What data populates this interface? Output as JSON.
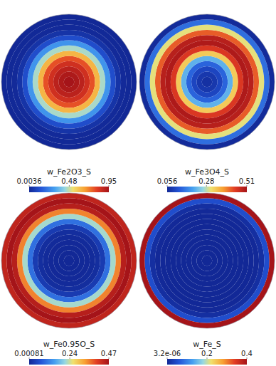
{
  "chart_data": [
    {
      "type": "heatmap",
      "title": "w_Fe2O3_S",
      "cells": [
        0.95,
        0.93,
        0.9,
        0.85,
        0.78,
        0.62,
        0.45,
        0.28,
        0.12,
        0.04,
        0.01,
        0.006,
        0.0036
      ],
      "color_range": [
        0.0036,
        0.95
      ],
      "color_ticks": [
        0.0036,
        0.48,
        0.95
      ]
    },
    {
      "type": "heatmap",
      "title": "w_Fe3O4_S",
      "cells": [
        0.07,
        0.08,
        0.1,
        0.14,
        0.22,
        0.33,
        0.45,
        0.5,
        0.49,
        0.42,
        0.3,
        0.15,
        0.06
      ],
      "color_range": [
        0.056,
        0.51
      ],
      "color_ticks": [
        0.056,
        0.28,
        0.51
      ]
    },
    {
      "type": "heatmap",
      "title": "w_Fe0.95O_S",
      "cells": [
        0.001,
        0.001,
        0.002,
        0.003,
        0.005,
        0.01,
        0.03,
        0.1,
        0.22,
        0.35,
        0.45,
        0.47,
        0.44
      ],
      "color_range": [
        0.00081,
        0.47
      ],
      "color_ticks": [
        0.00081,
        0.24,
        0.47
      ]
    },
    {
      "type": "heatmap",
      "title": "w_Fe_S",
      "cells": [
        1e-05,
        1e-05,
        1e-05,
        1e-05,
        1e-05,
        2e-05,
        5e-05,
        0.0001,
        0.0005,
        0.002,
        0.01,
        0.05,
        0.4
      ],
      "color_range": [
        3.2e-06,
        0.4
      ],
      "color_ticks": [
        {
          "value": 3.2e-06,
          "label": "3.2e-06"
        },
        0.2,
        0.4
      ]
    }
  ]
}
